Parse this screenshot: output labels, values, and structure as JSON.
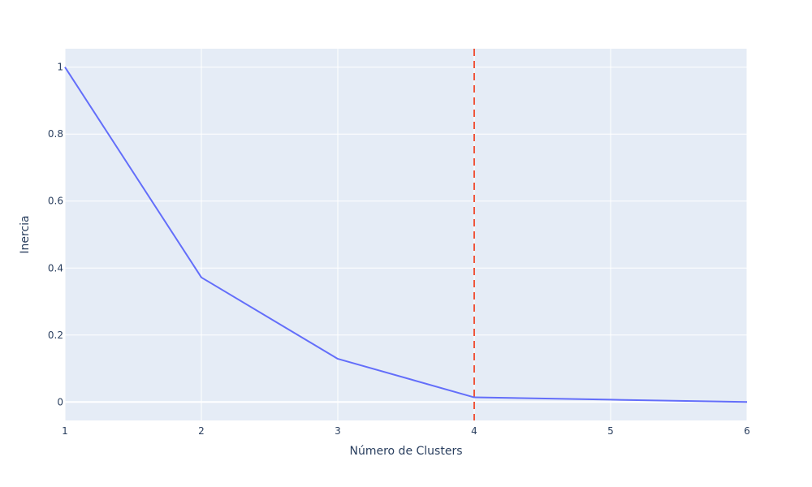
{
  "chart_data": {
    "type": "line",
    "title": "",
    "xlabel": "Número de Clusters",
    "ylabel": "Inercia",
    "x": [
      1,
      2,
      3,
      4,
      5,
      6
    ],
    "series": [
      {
        "values": [
          1.0,
          0.372,
          0.129,
          0.014,
          0.007,
          0.0
        ],
        "color": "#636efa"
      }
    ],
    "xlim": [
      1,
      6
    ],
    "ylim": [
      -0.055,
      1.055
    ],
    "xticks": [
      1,
      2,
      3,
      4,
      5,
      6
    ],
    "xtick_labels": [
      "1",
      "2",
      "3",
      "4",
      "5",
      "6"
    ],
    "yticks": [
      0,
      0.2,
      0.4,
      0.6,
      0.8,
      1
    ],
    "ytick_labels": [
      "0",
      "0.2",
      "0.4",
      "0.6",
      "0.8",
      "1"
    ],
    "reference_line": {
      "x": 4,
      "orientation": "vertical",
      "style": "dashed",
      "color": "#ef553b"
    },
    "plot_background": "#e5ecf6",
    "grid_color": "#ffffff",
    "grid": true,
    "legend": "none"
  }
}
